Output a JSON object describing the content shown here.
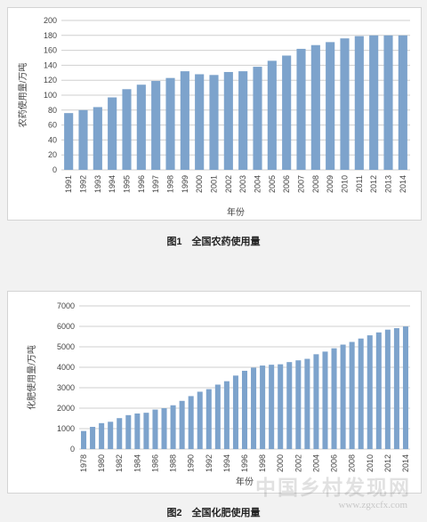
{
  "colors": {
    "bar": "#7da3cc",
    "grid": "#cfcfcf",
    "axis_text": "#444444",
    "panel_border": "#d4d4d4"
  },
  "chart_data": [
    {
      "type": "bar",
      "title": "",
      "caption": "图1　全国农药使用量",
      "xlabel": "年份",
      "ylabel": "农药使用量/万吨",
      "ylim": [
        0,
        200
      ],
      "yticks": [
        0,
        20,
        40,
        60,
        80,
        100,
        120,
        140,
        160,
        180,
        200
      ],
      "grid": true,
      "categories": [
        "1991",
        "1992",
        "1993",
        "1994",
        "1995",
        "1996",
        "1997",
        "1998",
        "1999",
        "2000",
        "2001",
        "2002",
        "2003",
        "2004",
        "2005",
        "2006",
        "2007",
        "2008",
        "2009",
        "2010",
        "2011",
        "2012",
        "2013",
        "2014"
      ],
      "values": [
        76,
        80,
        84,
        97,
        108,
        114,
        119,
        123,
        132,
        128,
        127,
        131,
        132,
        138,
        146,
        153,
        162,
        167,
        171,
        176,
        179,
        180,
        180,
        180
      ]
    },
    {
      "type": "bar",
      "title": "",
      "caption": "图2　全国化肥使用量",
      "xlabel": "年份",
      "ylabel": "化肥使用量/万吨",
      "ylim": [
        0,
        7000
      ],
      "yticks": [
        0,
        1000,
        2000,
        3000,
        4000,
        5000,
        6000,
        7000
      ],
      "grid": true,
      "categories": [
        "1978",
        "1979",
        "1980",
        "1981",
        "1982",
        "1983",
        "1984",
        "1985",
        "1986",
        "1987",
        "1988",
        "1989",
        "1990",
        "1991",
        "1992",
        "1993",
        "1994",
        "1995",
        "1996",
        "1997",
        "1998",
        "1999",
        "2000",
        "2001",
        "2002",
        "2003",
        "2004",
        "2005",
        "2006",
        "2007",
        "2008",
        "2009",
        "2010",
        "2011",
        "2012",
        "2013",
        "2014"
      ],
      "tick_labels": [
        "1978",
        "1980",
        "1982",
        "1984",
        "1986",
        "1988",
        "1990",
        "1992",
        "1994",
        "1996",
        "1998",
        "2000",
        "2002",
        "2004",
        "2006",
        "2008",
        "2010",
        "2012",
        "2014"
      ],
      "values": [
        884,
        1086,
        1269,
        1335,
        1513,
        1660,
        1740,
        1776,
        1931,
        1999,
        2142,
        2357,
        2590,
        2805,
        2930,
        3152,
        3318,
        3594,
        3828,
        3981,
        4084,
        4124,
        4146,
        4254,
        4339,
        4412,
        4637,
        4766,
        4928,
        5108,
        5239,
        5404,
        5562,
        5704,
        5839,
        5912,
        5996
      ]
    }
  ],
  "watermark": {
    "text": "中国乡村发现网",
    "url": "www.zgxcfx.com"
  }
}
